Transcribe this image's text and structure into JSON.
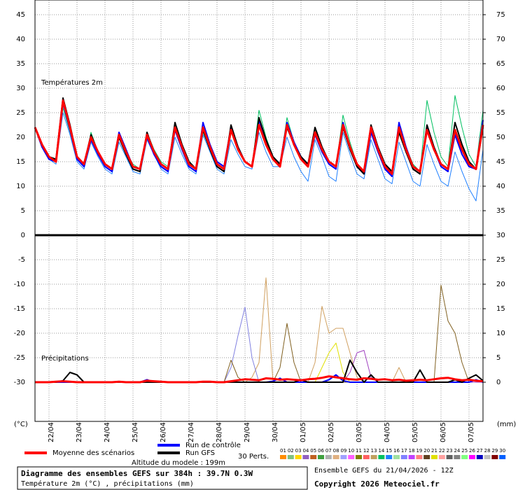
{
  "chart_data": {
    "type": "line",
    "panel_labels": [
      "Températures 2m",
      "Précipitations"
    ],
    "y_unit": "(°C)",
    "y2_unit": "(mm)",
    "grid": true,
    "xlim": [
      0,
      384
    ],
    "xticks": [
      {
        "value": 12,
        "label": "22/04"
      },
      {
        "value": 36,
        "label": "23/04"
      },
      {
        "value": 60,
        "label": "24/04"
      },
      {
        "value": 84,
        "label": "25/04"
      },
      {
        "value": 108,
        "label": "26/04"
      },
      {
        "value": 132,
        "label": "27/04"
      },
      {
        "value": 156,
        "label": "28/04"
      },
      {
        "value": 180,
        "label": "29/04"
      },
      {
        "value": 204,
        "label": "30/04"
      },
      {
        "value": 228,
        "label": "01/05"
      },
      {
        "value": 252,
        "label": "02/05"
      },
      {
        "value": 276,
        "label": "03/05"
      },
      {
        "value": 300,
        "label": "04/05"
      },
      {
        "value": 324,
        "label": "05/05"
      },
      {
        "value": 348,
        "label": "06/05"
      },
      {
        "value": 372,
        "label": "07/05"
      }
    ],
    "ylim": [
      -38,
      48
    ],
    "yticks": [
      -30,
      -25,
      -20,
      -15,
      -10,
      -5,
      0,
      5,
      10,
      15,
      20,
      25,
      30,
      35,
      40,
      45
    ],
    "y2lim": [
      -8,
      78
    ],
    "y2ticks": [
      0,
      5,
      10,
      15,
      20,
      25,
      30,
      35,
      40,
      45,
      50,
      55,
      60,
      65,
      70,
      75
    ],
    "x": [
      0,
      6,
      12,
      18,
      24,
      30,
      36,
      42,
      48,
      54,
      60,
      66,
      72,
      78,
      84,
      90,
      96,
      102,
      108,
      114,
      120,
      126,
      132,
      138,
      144,
      150,
      156,
      162,
      168,
      174,
      180,
      186,
      192,
      198,
      204,
      210,
      216,
      222,
      228,
      234,
      240,
      246,
      252,
      258,
      264,
      270,
      276,
      282,
      288,
      294,
      300,
      306,
      312,
      318,
      324,
      330,
      336,
      342,
      348,
      354,
      360,
      366,
      372,
      378,
      384
    ],
    "series": [
      {
        "color": "#00c060",
        "width": 1,
        "values": [
          22,
          18,
          16,
          15,
          26,
          21,
          15.5,
          14,
          21,
          17,
          14,
          13,
          21,
          17,
          14.5,
          13.5,
          21,
          17.5,
          15,
          14,
          22.5,
          18,
          14.5,
          13.5,
          21,
          17.5,
          14,
          13,
          22,
          18,
          15,
          14,
          25.5,
          20,
          16,
          14.5,
          24,
          19,
          15.5,
          14,
          21.5,
          17.5,
          15,
          14,
          24.5,
          19,
          14.5,
          13,
          22,
          17.5,
          14,
          12.5,
          23,
          18,
          14.5,
          13,
          27.5,
          21,
          16,
          14,
          28.5,
          22,
          16.5,
          14,
          25.5
        ]
      },
      {
        "color": "#2080ff",
        "width": 1,
        "values": [
          22,
          18,
          15.5,
          14.5,
          25,
          20.5,
          15,
          13.5,
          19,
          16,
          13.5,
          12.5,
          19,
          16,
          13,
          12.5,
          19.5,
          16.5,
          13.5,
          12.5,
          20,
          16.5,
          13.5,
          12.5,
          20.5,
          17,
          13.5,
          12.5,
          19.5,
          16.5,
          14,
          13.5,
          21,
          17,
          14,
          14,
          20,
          16,
          13,
          11,
          19.5,
          16,
          12,
          11,
          21,
          16.5,
          12.5,
          11.5,
          19.5,
          15.5,
          11.5,
          10.5,
          19,
          15,
          11,
          10,
          18.5,
          14.5,
          11,
          10,
          17,
          13,
          9.5,
          7,
          17.5
        ]
      },
      {
        "name": "Run de contrôle",
        "color": "#0000ff",
        "width": 2,
        "values": [
          22,
          18,
          15.5,
          15,
          27,
          21.5,
          15.5,
          14,
          19.5,
          16.5,
          14,
          13,
          21,
          17.5,
          14,
          13.5,
          20,
          16.5,
          14,
          13,
          21.5,
          17.5,
          14,
          13,
          23,
          18.5,
          15,
          14,
          22,
          18,
          15,
          14,
          23.5,
          19,
          15.5,
          14.5,
          23,
          19,
          16,
          14.5,
          20.5,
          17,
          14.5,
          13.5,
          23,
          18,
          14,
          12.5,
          21,
          17,
          13.5,
          12,
          23,
          18,
          14,
          13,
          22,
          17.5,
          14,
          13,
          20.5,
          16.5,
          14,
          13.5,
          23.5
        ]
      },
      {
        "name": "Run GFS",
        "color": "#000000",
        "width": 2,
        "values": [
          22,
          18.5,
          16,
          15.5,
          28,
          22.5,
          16,
          14.5,
          20.5,
          17,
          14.5,
          13.5,
          20,
          16.5,
          13.5,
          13,
          21,
          17,
          14.5,
          13.5,
          23,
          18.5,
          15,
          13.5,
          21.5,
          17.5,
          14,
          13,
          22.5,
          18,
          15,
          14,
          24,
          19.5,
          16,
          14.5,
          22,
          18.5,
          16,
          14.5,
          22,
          18,
          15,
          14,
          22,
          17.5,
          14,
          12.5,
          22.5,
          18,
          14.5,
          13,
          21,
          17,
          13.5,
          12.5,
          22.5,
          18,
          14.5,
          13.5,
          23,
          18.5,
          15,
          13.5,
          22
        ]
      },
      {
        "name": "Moyenne des scénarios",
        "color": "#ff0000",
        "width": 3,
        "values": [
          22,
          18.5,
          16,
          15,
          27.5,
          22,
          16,
          14.5,
          20,
          17,
          14.5,
          13.5,
          20.5,
          17,
          14,
          13.5,
          20.5,
          17,
          14.5,
          13.5,
          22,
          18,
          14.5,
          13.5,
          22,
          18,
          14.5,
          13.5,
          21.5,
          17.5,
          15,
          14,
          22.5,
          18.5,
          15.5,
          14,
          22.5,
          18.5,
          15.5,
          14,
          21,
          17.5,
          15,
          14,
          22.5,
          18,
          14.5,
          13,
          22,
          17.5,
          14,
          12.5,
          22,
          17.5,
          14,
          13,
          21.5,
          17.5,
          14.5,
          13.5,
          21.5,
          17.5,
          14.5,
          13.5,
          22.5
        ]
      },
      {
        "axis": "y2",
        "color": "#d0a060",
        "width": 1,
        "values": [
          0,
          0,
          0,
          0,
          0,
          0,
          0,
          0,
          0,
          0,
          0,
          0,
          0,
          0,
          0,
          0,
          0,
          0,
          0,
          0,
          0,
          0,
          0,
          0,
          0,
          0,
          0,
          0,
          0,
          0,
          0,
          1,
          4,
          21.3,
          0,
          0,
          0,
          0,
          0,
          0,
          4,
          15.5,
          10,
          11,
          11,
          6,
          1,
          0,
          0,
          0,
          0,
          0,
          3,
          0,
          0,
          0,
          0,
          0,
          0,
          0,
          0,
          0,
          0,
          0,
          0
        ]
      },
      {
        "axis": "y2",
        "color": "#8080e0",
        "width": 1,
        "values": [
          0,
          0,
          0,
          0,
          0,
          0,
          0,
          0,
          0,
          0,
          0,
          0,
          0,
          0,
          0,
          0,
          0,
          0,
          0,
          0,
          0,
          0,
          0,
          0,
          0,
          0,
          0,
          0,
          3,
          9.5,
          15.3,
          5,
          0,
          0,
          0,
          0,
          0,
          0,
          0,
          0,
          0,
          0,
          0,
          0,
          0,
          0,
          0,
          0,
          0,
          0,
          0,
          0,
          0,
          0,
          0,
          0,
          0,
          0,
          0,
          0,
          0,
          0,
          0,
          0,
          0
        ]
      },
      {
        "axis": "y2",
        "color": "#806020",
        "width": 1,
        "values": [
          0,
          0,
          0,
          0,
          0,
          0,
          0,
          0,
          0,
          0,
          0,
          0,
          0,
          0,
          0,
          0,
          0,
          0,
          0,
          0,
          0,
          0,
          0,
          0,
          0,
          0,
          0,
          0,
          4.5,
          1,
          0,
          0,
          0,
          0,
          0,
          3,
          12,
          4,
          0,
          0,
          0,
          0,
          0,
          0,
          0,
          0,
          0,
          0,
          0,
          0,
          0,
          0,
          0,
          0,
          0,
          0,
          0,
          0,
          19.8,
          12.5,
          10,
          4,
          0,
          0,
          0
        ]
      },
      {
        "axis": "y2",
        "color": "#e0e000",
        "width": 1,
        "values": [
          0,
          0,
          0,
          0,
          0,
          0,
          0,
          0,
          0,
          0,
          0,
          0,
          0,
          0,
          0,
          0,
          0,
          0,
          0,
          0,
          0,
          0,
          0,
          0,
          0,
          0,
          0,
          0,
          0,
          0,
          0,
          0,
          0,
          0,
          0,
          0,
          0,
          0,
          0,
          0,
          0,
          3,
          6,
          8,
          2,
          0,
          0,
          0,
          0,
          0,
          0,
          0,
          0,
          0,
          0,
          0,
          0,
          0,
          0,
          0,
          0,
          0,
          0,
          0,
          0
        ]
      },
      {
        "axis": "y2",
        "color": "#a040c0",
        "width": 1,
        "values": [
          0,
          0,
          0,
          0,
          0,
          0,
          0,
          0,
          0,
          0,
          0,
          0,
          0,
          0,
          0,
          0,
          0,
          0,
          0,
          0,
          0,
          0,
          0,
          0,
          0,
          0,
          0,
          0,
          0,
          0,
          0,
          0,
          0,
          0,
          0,
          0,
          0,
          0,
          0,
          0,
          0,
          0,
          0,
          0,
          0,
          2,
          6,
          6.5,
          1,
          0,
          0,
          0,
          0,
          0,
          0,
          0,
          0,
          0,
          0,
          0,
          0,
          0,
          0,
          0,
          0
        ]
      },
      {
        "axis": "y2",
        "color": "#0000ff",
        "width": 2,
        "values": [
          0,
          0,
          0,
          0,
          0,
          0,
          0,
          0,
          0,
          0,
          0,
          0,
          0,
          0,
          0,
          0,
          0.5,
          0,
          0,
          0,
          0,
          0,
          0,
          0,
          0,
          0,
          0,
          0,
          0,
          0,
          0,
          0,
          0,
          0,
          0.2,
          0.8,
          0,
          0,
          0,
          0,
          0,
          0,
          0.5,
          1.5,
          0.3,
          0,
          0,
          0,
          0,
          0,
          0,
          0,
          0,
          0,
          0,
          0,
          0,
          0,
          0,
          0,
          0,
          0,
          0,
          0.5,
          0
        ]
      },
      {
        "axis": "y2",
        "color": "#000000",
        "width": 2,
        "values": [
          0,
          0,
          0,
          0,
          0.3,
          2,
          1.5,
          0,
          0,
          0,
          0,
          0,
          0,
          0,
          0,
          0,
          0,
          0,
          0,
          0,
          0,
          0,
          0,
          0,
          0,
          0,
          0,
          0,
          0,
          0,
          0,
          0,
          0,
          0,
          0,
          0,
          0,
          0,
          0.5,
          0,
          0,
          0,
          0,
          0,
          0,
          4.5,
          2,
          0,
          1.5,
          0,
          0,
          0,
          0,
          0,
          0,
          2.5,
          0,
          0,
          0,
          0,
          0.5,
          0,
          0.8,
          1.5,
          0.3
        ]
      },
      {
        "axis": "y2",
        "color": "#ff0000",
        "width": 3,
        "values": [
          0,
          0,
          0,
          0.1,
          0.2,
          0.1,
          0,
          0,
          0,
          0,
          0,
          0,
          0.1,
          0,
          0,
          0,
          0.3,
          0.2,
          0.1,
          0,
          0,
          0,
          0,
          0,
          0.1,
          0.1,
          0,
          0,
          0.2,
          0.4,
          0.6,
          0.5,
          0.4,
          0.8,
          0.7,
          0.5,
          0.6,
          0.5,
          0.4,
          0.6,
          0.7,
          0.9,
          1.2,
          1.0,
          0.8,
          0.6,
          0.5,
          0.8,
          0.7,
          0.5,
          0.6,
          0.4,
          0.5,
          0.3,
          0.4,
          0.5,
          0.4,
          0.6,
          0.8,
          0.9,
          0.6,
          0.4,
          0.5,
          0.3,
          0.2
        ]
      }
    ],
    "perturbations_label": "30 Perts.",
    "perturbations": [
      {
        "label": "01",
        "color": "#ff8c00"
      },
      {
        "label": "02",
        "color": "#80c080"
      },
      {
        "label": "03",
        "color": "#ffd700"
      },
      {
        "label": "04",
        "color": "#9060c0"
      },
      {
        "label": "05",
        "color": "#c06020"
      },
      {
        "label": "06",
        "color": "#40a040"
      },
      {
        "label": "07",
        "color": "#b0b0b0"
      },
      {
        "label": "08",
        "color": "#e0b080"
      },
      {
        "label": "09",
        "color": "#a0a0ff"
      },
      {
        "label": "10",
        "color": "#ff60ff"
      },
      {
        "label": "11",
        "color": "#808000"
      },
      {
        "label": "12",
        "color": "#ff6060"
      },
      {
        "label": "13",
        "color": "#c0a060"
      },
      {
        "label": "14",
        "color": "#00c060"
      },
      {
        "label": "15",
        "color": "#2080ff"
      },
      {
        "label": "16",
        "color": "#a0e0a0"
      },
      {
        "label": "17",
        "color": "#8080ff"
      },
      {
        "label": "18",
        "color": "#c040ff"
      },
      {
        "label": "19",
        "color": "#ff8080"
      },
      {
        "label": "20",
        "color": "#604020"
      },
      {
        "label": "21",
        "color": "#e0e000"
      },
      {
        "label": "22",
        "color": "#ffa0a0"
      },
      {
        "label": "23",
        "color": "#606060"
      },
      {
        "label": "24",
        "color": "#808080"
      },
      {
        "label": "25",
        "color": "#80ff80"
      },
      {
        "label": "26",
        "color": "#ff00ff"
      },
      {
        "label": "27",
        "color": "#0000c0"
      },
      {
        "label": "28",
        "color": "#c0c0c0"
      },
      {
        "label": "29",
        "color": "#800000"
      },
      {
        "label": "30",
        "color": "#0060ff"
      }
    ],
    "altitude": "Altitude du modele : 199m"
  },
  "footer": {
    "title": "Diagramme des ensembles GEFS sur 384h : 39.7N 0.3W",
    "subtitle": "Température 2m (°C) , précipitations (mm)",
    "run": "Ensemble GEFS du 21/04/2026 - 12Z",
    "copyright": "Copyright 2026 Meteociel.fr"
  }
}
